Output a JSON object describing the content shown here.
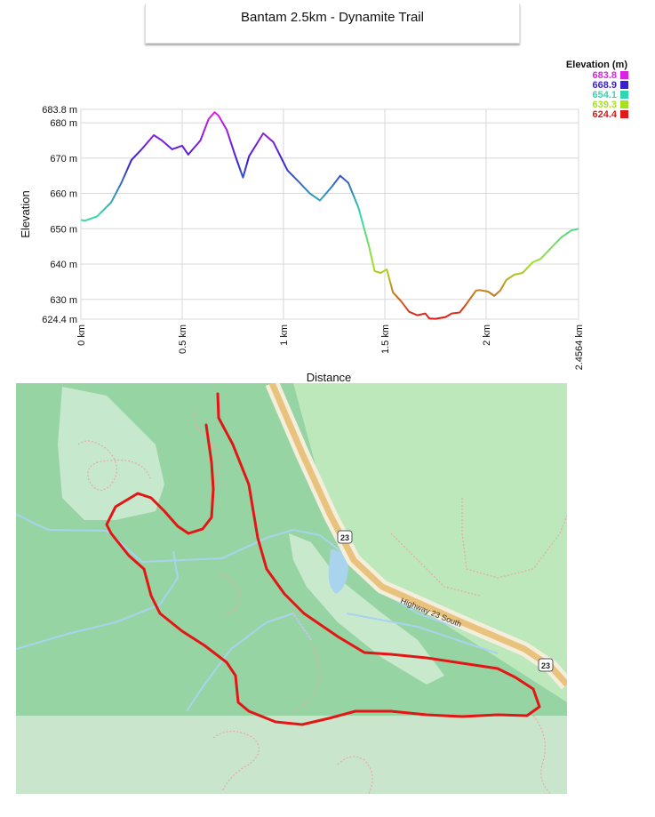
{
  "title": "Bantam 2.5km - Dynamite Trail",
  "chart_data": {
    "type": "line",
    "xlabel": "Distance",
    "ylabel": "Elevation",
    "xlim": [
      0,
      2.4564
    ],
    "ylim": [
      624.4,
      683.8
    ],
    "x_ticks": [
      {
        "value": 0,
        "label": "0 km"
      },
      {
        "value": 0.5,
        "label": "0.5 km"
      },
      {
        "value": 1,
        "label": "1 km"
      },
      {
        "value": 1.5,
        "label": "1.5 km"
      },
      {
        "value": 2,
        "label": "2 km"
      },
      {
        "value": 2.4564,
        "label": "2.4564 km"
      }
    ],
    "y_ticks": [
      {
        "value": 624.4,
        "label": "624.4 m"
      },
      {
        "value": 630,
        "label": "630 m"
      },
      {
        "value": 640,
        "label": "640 m"
      },
      {
        "value": 650,
        "label": "650 m"
      },
      {
        "value": 660,
        "label": "660 m"
      },
      {
        "value": 670,
        "label": "670 m"
      },
      {
        "value": 680,
        "label": "680 m"
      },
      {
        "value": 683.8,
        "label": "683.8 m"
      }
    ],
    "grid": true,
    "x": [
      0,
      0.02,
      0.08,
      0.15,
      0.2,
      0.25,
      0.3,
      0.36,
      0.4,
      0.45,
      0.5,
      0.53,
      0.59,
      0.63,
      0.66,
      0.68,
      0.72,
      0.76,
      0.8,
      0.83,
      0.9,
      0.95,
      1.02,
      1.08,
      1.13,
      1.18,
      1.24,
      1.28,
      1.32,
      1.37,
      1.42,
      1.45,
      1.48,
      1.51,
      1.54,
      1.58,
      1.62,
      1.66,
      1.7,
      1.72,
      1.75,
      1.8,
      1.83,
      1.87,
      1.9,
      1.95,
      1.97,
      2.01,
      2.04,
      2.07,
      2.1,
      2.14,
      2.18,
      2.23,
      2.27,
      2.32,
      2.37,
      2.42,
      2.4564
    ],
    "y": [
      652.5,
      652.3,
      653.5,
      657.5,
      663,
      669.5,
      672.5,
      676.5,
      675,
      672.5,
      673.5,
      671,
      675,
      681,
      683,
      682,
      678,
      671,
      664.5,
      670.5,
      677,
      674.5,
      666.5,
      663,
      660,
      658,
      662,
      665,
      663,
      656,
      645.5,
      638,
      637.5,
      638.5,
      632,
      629.5,
      626.5,
      625.5,
      626,
      624.6,
      624.5,
      625,
      626,
      626.3,
      628.5,
      632.5,
      632.6,
      632.2,
      631,
      632.5,
      635.5,
      637,
      637.5,
      640.5,
      641.5,
      644.5,
      647.5,
      649.5,
      650
    ]
  },
  "legend": {
    "title": "Elevation (m)",
    "items": [
      {
        "label": "683.8",
        "color": "#e020e0"
      },
      {
        "label": "668.9",
        "color": "#3a1fd0"
      },
      {
        "label": "654.1",
        "color": "#2fd8b0"
      },
      {
        "label": "639.3",
        "color": "#a8e020"
      },
      {
        "label": "624.4",
        "color": "#e01818"
      }
    ]
  },
  "map": {
    "road_label": "Highway 23 South",
    "shield_1": "23",
    "shield_2": "23",
    "colors": {
      "forest": "#97d4a3",
      "park": "#bce8bc",
      "clearing": "#cfead3",
      "water": "#aad3ee",
      "road": "#e9c27e",
      "route": "#e31515"
    }
  }
}
